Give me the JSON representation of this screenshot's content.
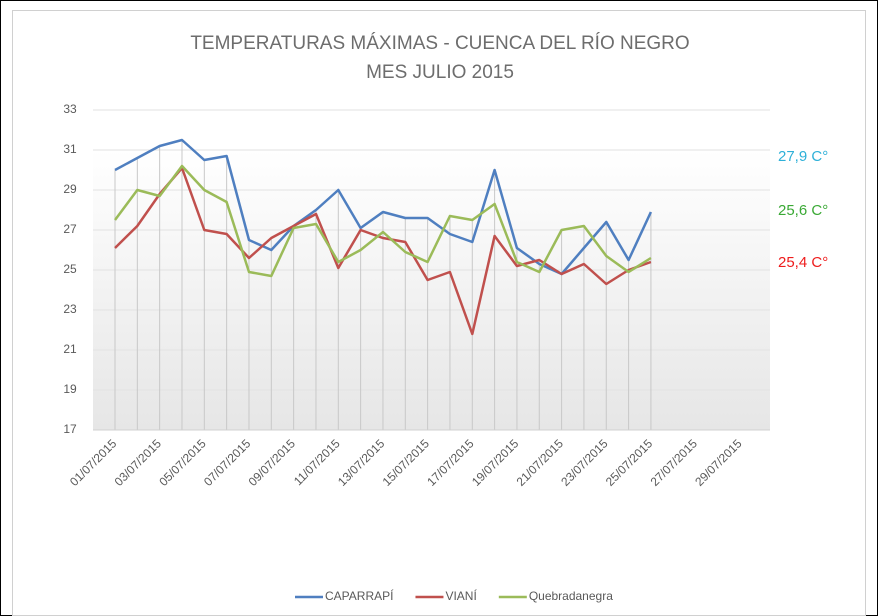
{
  "chart_data": {
    "type": "line",
    "title": "TEMPERATURAS  MÁXIMAS - CUENCA DEL RÍO NEGRO",
    "subtitle": "MES JULIO 2015",
    "categories": [
      "01/07/2015",
      null,
      "03/07/2015",
      null,
      "05/07/2015",
      null,
      "07/07/2015",
      null,
      "09/07/2015",
      null,
      "11/07/2015",
      null,
      "13/07/2015",
      null,
      "15/07/2015",
      null,
      "17/07/2015",
      null,
      "19/07/2015",
      null,
      "21/07/2015",
      null,
      "23/07/2015",
      null,
      "25/07/2015",
      null,
      "27/07/2015",
      null,
      "29/07/2015",
      null
    ],
    "series": [
      {
        "name": "CAPARRAPÍ",
        "color": "#4f7fc0",
        "values": [
          30.0,
          30.6,
          31.2,
          31.5,
          30.5,
          30.7,
          26.5,
          26.0,
          27.2,
          28.0,
          29.0,
          27.1,
          27.9,
          27.6,
          27.6,
          26.8,
          26.4,
          30.0,
          26.1,
          25.3,
          24.8,
          26.1,
          27.4,
          25.5,
          27.9,
          null,
          null,
          null,
          null,
          null
        ]
      },
      {
        "name": "VIANÍ",
        "color": "#c0504d",
        "values": [
          26.1,
          27.2,
          28.8,
          30.1,
          27.0,
          26.8,
          25.6,
          26.6,
          27.2,
          27.8,
          25.1,
          27.0,
          26.6,
          26.4,
          24.5,
          24.9,
          21.8,
          26.7,
          25.2,
          25.5,
          24.8,
          25.3,
          24.3,
          25.0,
          25.4,
          null,
          null,
          null,
          null,
          null
        ]
      },
      {
        "name": "Quebradanegra",
        "color": "#9bbb59",
        "values": [
          27.5,
          29.0,
          28.7,
          30.2,
          29.0,
          28.4,
          24.9,
          24.7,
          27.1,
          27.3,
          25.4,
          26.0,
          26.9,
          25.9,
          25.4,
          27.7,
          27.5,
          28.3,
          25.4,
          24.9,
          27.0,
          27.2,
          25.7,
          24.9,
          25.6,
          null,
          null,
          null,
          null,
          null
        ]
      }
    ],
    "ylim": [
      17,
      33
    ],
    "yticks": [
      17,
      19,
      21,
      23,
      25,
      27,
      29,
      31,
      33
    ],
    "grid": true,
    "legend": "bottom",
    "annotations": [
      {
        "text": "27,9 C°",
        "color": "#2eb0d8"
      },
      {
        "text": "25,6 C°",
        "color": "#3aa935"
      },
      {
        "text": "25,4 C°",
        "color": "#ee1c1c"
      }
    ]
  }
}
